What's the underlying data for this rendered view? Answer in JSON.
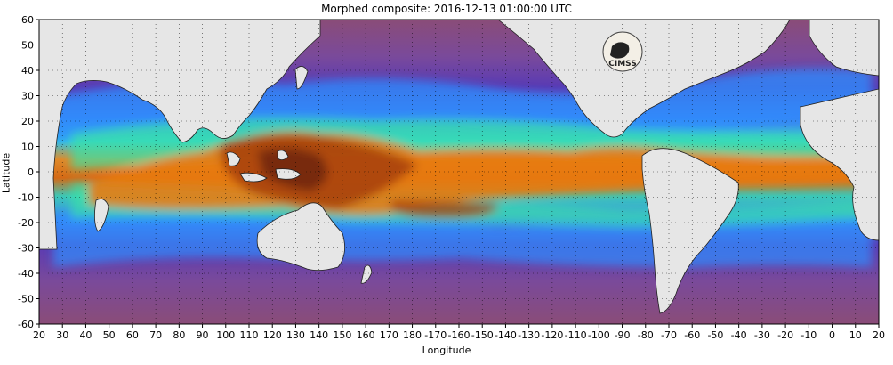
{
  "title": "Morphed composite: 2016-12-13 01:00:00 UTC",
  "xlabel": "Longitude",
  "ylabel": "Latitude",
  "logo_text": "CIMSS",
  "map": {
    "projection": "equirectangular",
    "lon_range_deg": [
      20,
      380
    ],
    "lat_range_deg": [
      -60,
      60
    ],
    "lat_ticks": [
      "60",
      "50",
      "40",
      "30",
      "20",
      "10",
      "0",
      "-10",
      "-20",
      "-30",
      "-40",
      "-50",
      "-60"
    ],
    "lon_ticks": [
      "20",
      "30",
      "40",
      "50",
      "60",
      "70",
      "80",
      "90",
      "100",
      "110",
      "120",
      "130",
      "140",
      "150",
      "160",
      "170",
      "180",
      "-170",
      "-160",
      "-150",
      "-140",
      "-130",
      "-120",
      "-110",
      "-100",
      "-90",
      "-80",
      "-70",
      "-60",
      "-50",
      "-40",
      "-30",
      "-20",
      "-10",
      "0",
      "10",
      "20"
    ],
    "grid": "dotted",
    "land_color": "#e6e6e6",
    "colors": {
      "dry": "#8a4c78",
      "low": "#4f2fb0",
      "mid_low": "#2f8fff",
      "mid": "#39e3a6",
      "mid_high": "#f4ea2e",
      "high": "#e87a12",
      "very_high": "#8e3008"
    }
  }
}
